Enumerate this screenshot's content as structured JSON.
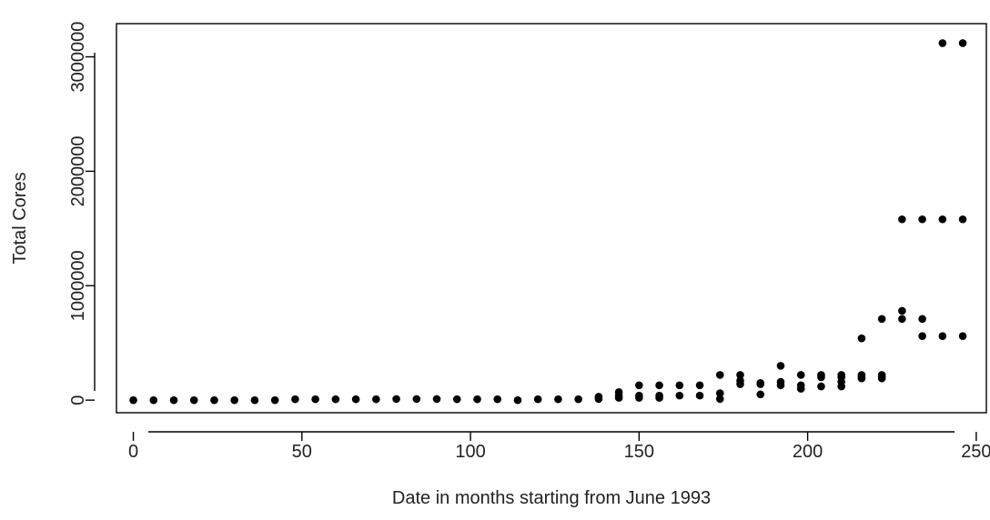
{
  "chart_data": {
    "type": "scatter",
    "title": "",
    "xlabel": "Date in months starting from June 1993",
    "ylabel": "Total Cores",
    "xlim": [
      -5,
      253
    ],
    "ylim": [
      -110000,
      3290000
    ],
    "xticks": [
      0,
      50,
      100,
      150,
      200,
      250
    ],
    "yticks": [
      0,
      1000000,
      2000000,
      3000000
    ],
    "ytick_labels": [
      "0",
      "1000000",
      "2000000",
      "3000000"
    ],
    "grid": false,
    "legend": "none",
    "point_color": "#000000",
    "series": [
      {
        "points": [
          [
            0,
            0
          ],
          [
            6,
            0
          ],
          [
            12,
            0
          ],
          [
            18,
            0
          ],
          [
            24,
            0
          ],
          [
            30,
            0
          ],
          [
            36,
            0
          ],
          [
            42,
            0
          ],
          [
            48,
            8000
          ],
          [
            54,
            8000
          ],
          [
            60,
            8000
          ],
          [
            66,
            8000
          ],
          [
            72,
            8000
          ],
          [
            78,
            10000
          ],
          [
            84,
            10000
          ],
          [
            90,
            10000
          ],
          [
            96,
            8000
          ],
          [
            102,
            8000
          ],
          [
            108,
            8000
          ],
          [
            114,
            0
          ],
          [
            120,
            8000
          ],
          [
            126,
            8000
          ],
          [
            132,
            8000
          ],
          [
            138,
            10000
          ],
          [
            138,
            30000
          ],
          [
            144,
            20000
          ],
          [
            144,
            40000
          ],
          [
            144,
            70000
          ],
          [
            150,
            20000
          ],
          [
            150,
            40000
          ],
          [
            150,
            130000
          ],
          [
            156,
            20000
          ],
          [
            156,
            40000
          ],
          [
            156,
            130000
          ],
          [
            162,
            40000
          ],
          [
            162,
            130000
          ],
          [
            168,
            40000
          ],
          [
            168,
            130000
          ],
          [
            174,
            10000
          ],
          [
            174,
            60000
          ],
          [
            174,
            220000
          ],
          [
            180,
            140000
          ],
          [
            180,
            170000
          ],
          [
            180,
            220000
          ],
          [
            186,
            50000
          ],
          [
            186,
            140000
          ],
          [
            186,
            150000
          ],
          [
            192,
            130000
          ],
          [
            192,
            160000
          ],
          [
            192,
            300000
          ],
          [
            198,
            100000
          ],
          [
            198,
            130000
          ],
          [
            198,
            220000
          ],
          [
            204,
            120000
          ],
          [
            204,
            200000
          ],
          [
            204,
            220000
          ],
          [
            210,
            120000
          ],
          [
            210,
            160000
          ],
          [
            210,
            200000
          ],
          [
            210,
            220000
          ],
          [
            216,
            190000
          ],
          [
            216,
            200000
          ],
          [
            216,
            220000
          ],
          [
            216,
            540000
          ],
          [
            222,
            190000
          ],
          [
            222,
            200000
          ],
          [
            222,
            220000
          ],
          [
            222,
            710000
          ],
          [
            228,
            710000
          ],
          [
            228,
            780000
          ],
          [
            228,
            1580000
          ],
          [
            234,
            560000
          ],
          [
            234,
            710000
          ],
          [
            234,
            1580000
          ],
          [
            240,
            560000
          ],
          [
            240,
            1580000
          ],
          [
            240,
            3120000
          ],
          [
            246,
            560000
          ],
          [
            246,
            1580000
          ],
          [
            246,
            3120000
          ]
        ]
      }
    ]
  }
}
